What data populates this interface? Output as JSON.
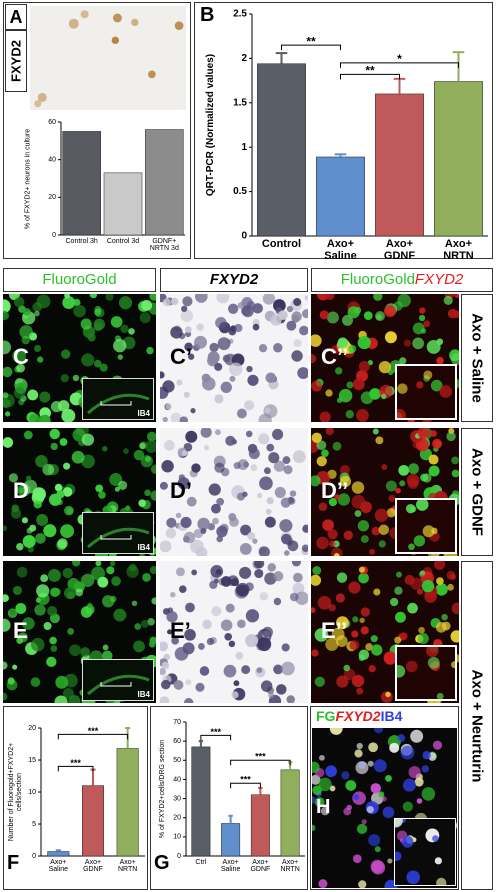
{
  "chart_data": [
    {
      "type": "bar",
      "panel_label": "A",
      "ylabel": "% of FXYD2+ neurons in culture",
      "categories": [
        "Control 3h",
        "Control 3d",
        "GDNF+ NRTN 3d"
      ],
      "values": [
        55,
        33,
        56
      ],
      "colors": [
        "#575b61",
        "#c9c9c9",
        "#8c8c8c"
      ],
      "ylim": [
        0,
        60
      ],
      "yticks": [
        0,
        20,
        40,
        60
      ]
    },
    {
      "type": "bar",
      "panel_label": "B",
      "ylabel": "QRT-PCR (Normalized values)",
      "categories": [
        "Control",
        "Axo+ Saline",
        "Axo+ GDNF",
        "Axo+ NRTN"
      ],
      "values": [
        1.94,
        0.89,
        1.6,
        1.74
      ],
      "errors": [
        0.12,
        0.03,
        0.17,
        0.33
      ],
      "colors": [
        "#5a5e66",
        "#5f8fcc",
        "#c05a5a",
        "#90ae5c"
      ],
      "ylim": [
        0,
        2.5
      ],
      "yticks": [
        0,
        0.5,
        1,
        1.5,
        2,
        2.5
      ],
      "annotations": [
        {
          "text": "**",
          "from": "Control",
          "to": "Axo+ Saline",
          "y": 2.15
        },
        {
          "text": "**",
          "from": "Axo+ Saline",
          "to": "Axo+ GDNF",
          "y": 1.82
        },
        {
          "text": "*",
          "from": "Axo+ Saline",
          "to": "Axo+ NRTN",
          "y": 1.95
        }
      ]
    },
    {
      "type": "bar",
      "panel_label": "F",
      "ylabel": "Number of Fluorogold+FXYD2+ cells/section",
      "categories": [
        "Axo+ Saline",
        "Axo+ GDNF",
        "Axo+ NRTN"
      ],
      "values": [
        0.7,
        11,
        16.8
      ],
      "errors": [
        0.2,
        2.5,
        3.2
      ],
      "colors": [
        "#5f8fcc",
        "#c05a5a",
        "#90ae5c"
      ],
      "ylim": [
        0,
        20
      ],
      "yticks": [
        0,
        5,
        10,
        15,
        20
      ],
      "annotations": [
        {
          "text": "***",
          "from": "Axo+ Saline",
          "to": "Axo+ GDNF",
          "y": 14
        },
        {
          "text": "***",
          "from": "Axo+ Saline",
          "to": "Axo+ NRTN",
          "y": 19
        }
      ]
    },
    {
      "type": "bar",
      "panel_label": "G",
      "ylabel": "% of FXYD2+cells/DRG section",
      "categories": [
        "Ctrl",
        "Axo+ Saline",
        "Axo+ GDNF",
        "Axo+ NRTN"
      ],
      "values": [
        57,
        17,
        32,
        45
      ],
      "errors": [
        3,
        4,
        3.5,
        4
      ],
      "colors": [
        "#5a5e66",
        "#5f8fcc",
        "#c05a5a",
        "#90ae5c"
      ],
      "ylim": [
        0,
        70
      ],
      "yticks": [
        0,
        10,
        20,
        30,
        40,
        50,
        60,
        70
      ],
      "annotations": [
        {
          "text": "***",
          "from": "Ctrl",
          "to": "Axo+ Saline",
          "y": 63
        },
        {
          "text": "***",
          "from": "Axo+ Saline",
          "to": "Axo+ GDNF",
          "y": 38
        },
        {
          "text": "***",
          "from": "Axo+ Saline",
          "to": "Axo+ NRTN",
          "y": 50
        }
      ]
    }
  ],
  "image_label": "FXYD2",
  "column_headers": {
    "fluorogold": "FluoroGold",
    "fxyd2": "FXYD2",
    "merge_green": "FluoroGold",
    "merge_red": "FXYD2"
  },
  "rows": [
    {
      "labels": [
        "C",
        "C’",
        "C’’"
      ],
      "condition": "Axo + Saline",
      "inset": "IB4"
    },
    {
      "labels": [
        "D",
        "D’",
        "D’’"
      ],
      "condition": "Axo + GDNF",
      "inset": "IB4"
    },
    {
      "labels": [
        "E",
        "E’",
        "E’’"
      ],
      "condition": "Axo + Neurturin",
      "inset": "IB4"
    }
  ],
  "panel_h": {
    "label": "H",
    "legend": [
      "FG",
      "FXYD2",
      "IB4"
    ]
  }
}
